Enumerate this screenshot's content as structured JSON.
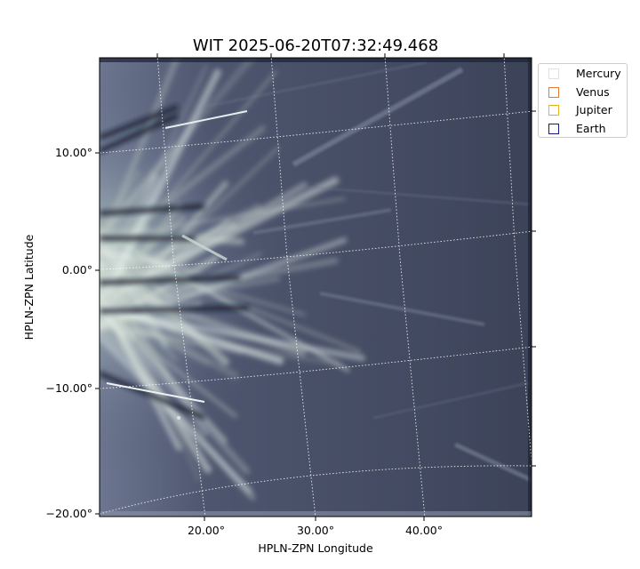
{
  "chart_data": {
    "type": "heatmap",
    "title": "WIT 2025-06-20T07:32:49.468",
    "xlabel": "HPLN-ZPN Longitude",
    "ylabel": "HPLN-ZPN Latitude",
    "x_ticks": [
      "20.00°",
      "30.00°",
      "40.00°"
    ],
    "y_ticks": [
      "10.00°",
      "0.00°",
      "−10.00°",
      "−20.00°"
    ],
    "xlim": [
      10.3,
      49.7
    ],
    "ylim": [
      -20.0,
      17.7
    ],
    "grid": true,
    "grid_style": "dotted white",
    "colormap": "bone",
    "legend_position": "outside top-right",
    "legend": [
      {
        "name": "Mercury",
        "color": "#e0e0e0"
      },
      {
        "name": "Venus",
        "color": "#e07b39"
      },
      {
        "name": "Jupiter",
        "color": "#e6b220"
      },
      {
        "name": "Earth",
        "color": "#1a1a7a"
      }
    ]
  }
}
